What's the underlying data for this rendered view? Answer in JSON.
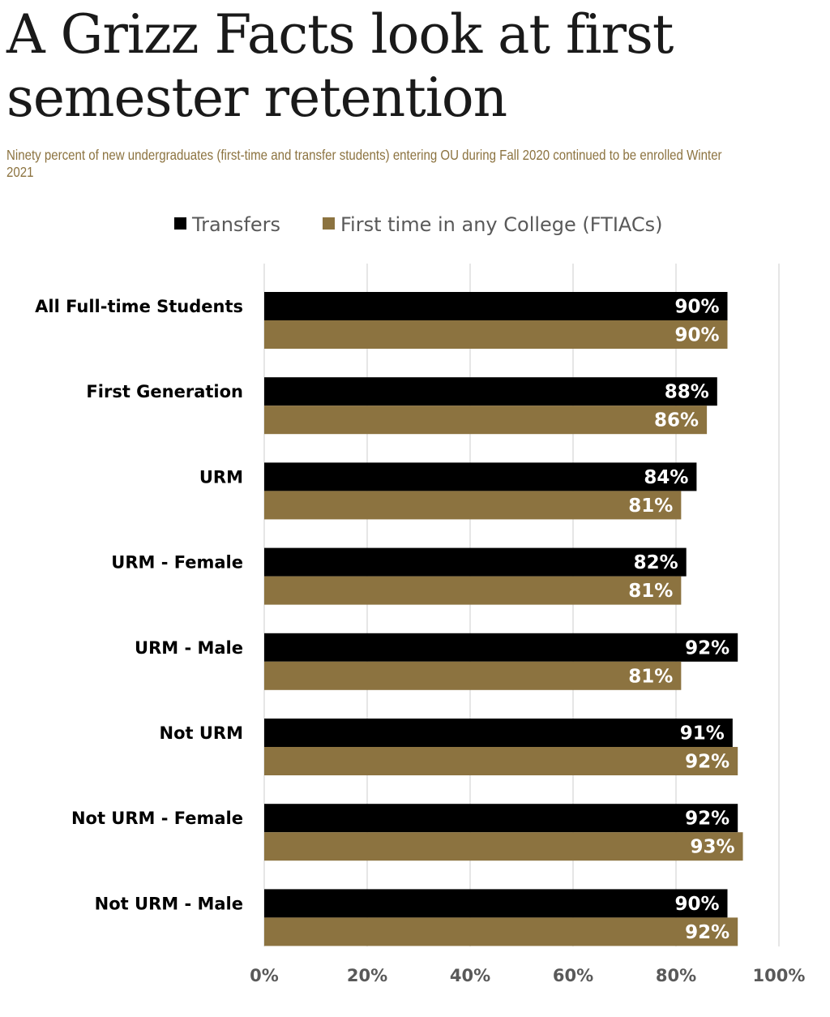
{
  "page": {
    "title": "A Grizz Facts look at first semester retention",
    "subtitle": "Ninety percent of new undergraduates (first-time and transfer students) entering OU during Fall 2020 continued to be enrolled Winter 2021"
  },
  "colors": {
    "transfers": "#000000",
    "ftiacs": "#8c7340",
    "subtitle": "#8c7340",
    "grid": "#d9d9d9",
    "axis_text": "#595959"
  },
  "chart_data": {
    "type": "bar",
    "orientation": "horizontal",
    "categories": [
      "All Full-time Students",
      "First Generation",
      "URM",
      "URM - Female",
      "URM - Male",
      "Not URM",
      "Not URM - Female",
      "Not URM - Male"
    ],
    "series": [
      {
        "name": "Transfers",
        "values": [
          90,
          88,
          84,
          82,
          92,
          91,
          92,
          90
        ],
        "labels": [
          "90%",
          "88%",
          "84%",
          "82%",
          "92%",
          "91%",
          "92%",
          "90%"
        ]
      },
      {
        "name": "First time in any College (FTIACs)",
        "values": [
          90,
          86,
          81,
          81,
          81,
          92,
          93,
          92
        ],
        "labels": [
          "90%",
          "86%",
          "81%",
          "81%",
          "81%",
          "92%",
          "93%",
          "92%"
        ]
      }
    ],
    "xlim": [
      0,
      100
    ],
    "ticks": [
      "0%",
      "20%",
      "40%",
      "60%",
      "80%",
      "100%"
    ],
    "grid": true,
    "legend": "top"
  }
}
